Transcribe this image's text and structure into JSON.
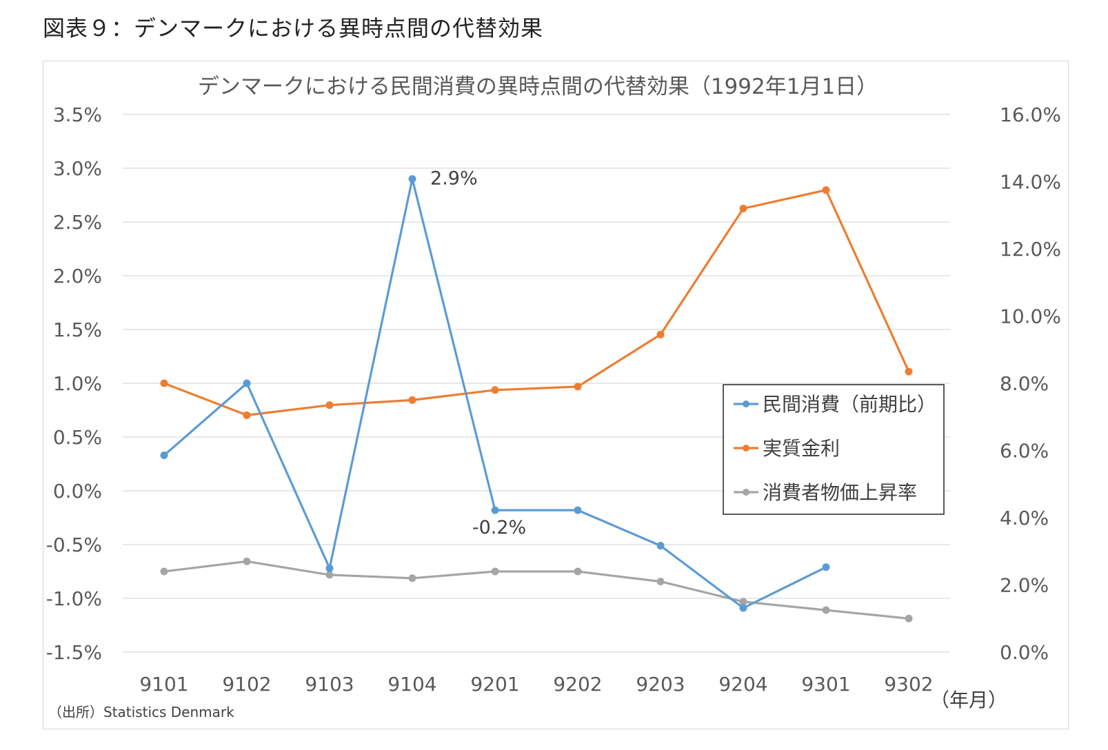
{
  "figure_title": "図表９：デンマークにおける異時点間の代替効果",
  "source_note": "（出所）Statistics Denmark",
  "x_unit_label": "（年月）",
  "colors": {
    "consumption": "#5b9bd5",
    "real_rate": "#ed7d31",
    "cpi": "#a5a5a5"
  },
  "chart_data": {
    "type": "line",
    "title": "デンマークにおける民間消費の異時点間の代替効果（1992年1月1日）",
    "categories": [
      "9101",
      "9102",
      "9103",
      "9104",
      "9201",
      "9202",
      "9203",
      "9204",
      "9301",
      "9302"
    ],
    "y_left": {
      "ylim": [
        -1.5,
        3.5
      ],
      "ticks": [
        "3.5%",
        "3.0%",
        "2.5%",
        "2.0%",
        "1.5%",
        "1.0%",
        "0.5%",
        "0.0%",
        "-0.5%",
        "-1.0%",
        "-1.5%"
      ]
    },
    "y_right": {
      "ylim": [
        0,
        16
      ],
      "ticks": [
        "16.0%",
        "14.0%",
        "12.0%",
        "10.0%",
        "8.0%",
        "6.0%",
        "4.0%",
        "2.0%",
        "0.0%"
      ]
    },
    "grid": true,
    "legend_position": "right",
    "series": [
      {
        "name": "民間消費（前期比）",
        "axis": "left",
        "color": "#5b9bd5",
        "values": [
          0.33,
          1.0,
          -0.72,
          2.9,
          -0.18,
          -0.18,
          -0.51,
          -1.09,
          -0.71,
          null
        ]
      },
      {
        "name": "実質金利",
        "axis": "right",
        "color": "#ed7d31",
        "values": [
          8.0,
          7.05,
          7.35,
          7.5,
          7.8,
          7.9,
          9.45,
          13.2,
          13.75,
          8.35
        ]
      },
      {
        "name": "消費者物価上昇率",
        "axis": "right",
        "color": "#a5a5a5",
        "values": [
          2.4,
          2.7,
          2.3,
          2.2,
          2.4,
          2.4,
          2.1,
          1.5,
          1.25,
          1.0
        ]
      }
    ],
    "annotations": [
      {
        "text": "2.9%",
        "series": 0,
        "index": 3
      },
      {
        "text": "-0.2%",
        "series": 0,
        "index": 4
      }
    ]
  }
}
